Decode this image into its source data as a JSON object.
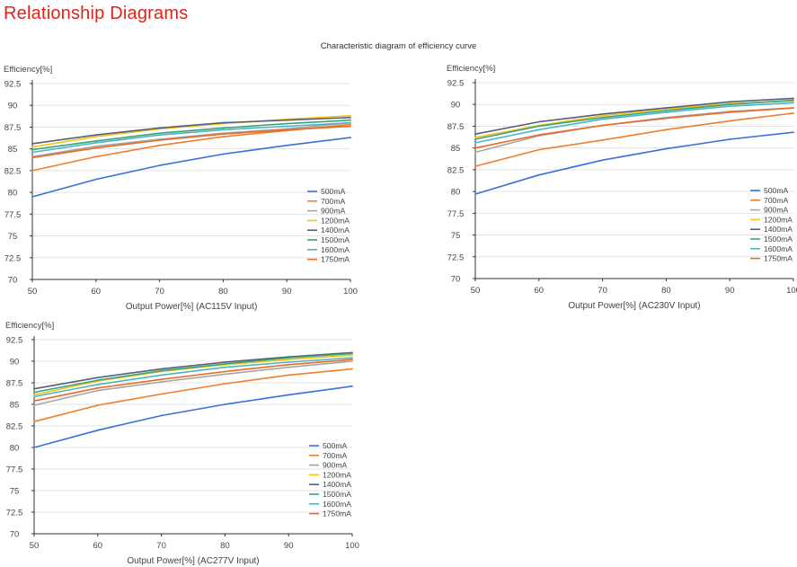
{
  "page": {
    "title": "Relationship Diagrams",
    "caption": "Characteristic diagram of efficiency curve"
  },
  "colors": {
    "title": "#e2231a",
    "gridline": "#e3e3e3",
    "axis": "#333333"
  },
  "legend_entries": [
    {
      "name": "500mA",
      "color": "#3b6fd8"
    },
    {
      "name": "700mA",
      "color": "#ef7e2c"
    },
    {
      "name": "900mA",
      "color": "#a5a5a5"
    },
    {
      "name": "1200mA",
      "color": "#f2c218"
    },
    {
      "name": "1400mA",
      "color": "#55607a"
    },
    {
      "name": "1500mA",
      "color": "#3aa37b"
    },
    {
      "name": "1600mA",
      "color": "#4bb5c4"
    },
    {
      "name": "1750mA",
      "color": "#e86a26"
    }
  ],
  "chart_data": [
    {
      "type": "line",
      "ylabel": "Efficiency[%]",
      "xlabel": "Output Power[%] (AC115V Input)",
      "x": [
        50,
        60,
        70,
        80,
        90,
        100
      ],
      "xticks": [
        "50",
        "60",
        "70",
        "80",
        "90",
        "100"
      ],
      "ylim": [
        70,
        92.5
      ],
      "yticks": [
        "70",
        "72.5",
        "75",
        "77.5",
        "80",
        "82.5",
        "85",
        "87.5",
        "90",
        "92.5"
      ],
      "grid": "horizontal",
      "legend_position": "bottom-right",
      "series": [
        {
          "name": "500mA",
          "values": [
            79.5,
            81.5,
            83.1,
            84.4,
            85.4,
            86.3
          ]
        },
        {
          "name": "700mA",
          "values": [
            82.5,
            84.1,
            85.4,
            86.4,
            87.1,
            87.8
          ]
        },
        {
          "name": "900mA",
          "values": [
            84.1,
            85.3,
            86.1,
            86.8,
            87.3,
            88.0
          ]
        },
        {
          "name": "1200mA",
          "values": [
            85.2,
            86.4,
            87.3,
            87.9,
            88.4,
            88.8
          ]
        },
        {
          "name": "1400mA",
          "values": [
            85.6,
            86.6,
            87.4,
            88.0,
            88.3,
            88.6
          ]
        },
        {
          "name": "1500mA",
          "values": [
            84.9,
            85.9,
            86.8,
            87.4,
            87.9,
            88.3
          ]
        },
        {
          "name": "1600mA",
          "values": [
            84.6,
            85.7,
            86.6,
            87.2,
            87.6,
            88.0
          ]
        },
        {
          "name": "1750mA",
          "values": [
            84.0,
            85.1,
            86.0,
            86.7,
            87.2,
            87.6
          ]
        }
      ]
    },
    {
      "type": "line",
      "ylabel": "Efficiency[%]",
      "xlabel": "Output Power[%] (AC230V Input)",
      "x": [
        50,
        60,
        70,
        80,
        90,
        100
      ],
      "xticks": [
        "50",
        "60",
        "70",
        "80",
        "90",
        "100"
      ],
      "ylim": [
        70,
        92.5
      ],
      "yticks": [
        "70",
        "72.5",
        "75",
        "77.5",
        "80",
        "82.5",
        "85",
        "87.5",
        "90",
        "92.5"
      ],
      "grid": "horizontal",
      "legend_position": "bottom-right",
      "series": [
        {
          "name": "500mA",
          "values": [
            79.7,
            81.9,
            83.6,
            84.9,
            86.0,
            86.8
          ]
        },
        {
          "name": "700mA",
          "values": [
            82.9,
            84.8,
            85.9,
            87.1,
            88.1,
            89.0
          ]
        },
        {
          "name": "900mA",
          "values": [
            84.5,
            86.4,
            87.6,
            88.5,
            89.2,
            89.6
          ]
        },
        {
          "name": "1200mA",
          "values": [
            86.2,
            87.6,
            88.7,
            89.5,
            90.1,
            90.4
          ]
        },
        {
          "name": "1400mA",
          "values": [
            86.6,
            88.0,
            88.9,
            89.6,
            90.3,
            90.7
          ]
        },
        {
          "name": "1500mA",
          "values": [
            86.0,
            87.5,
            88.5,
            89.3,
            90.0,
            90.5
          ]
        },
        {
          "name": "1600mA",
          "values": [
            85.6,
            87.1,
            88.3,
            89.1,
            89.8,
            90.2
          ]
        },
        {
          "name": "1750mA",
          "values": [
            85.0,
            86.5,
            87.6,
            88.4,
            89.1,
            89.6
          ]
        }
      ]
    },
    {
      "type": "line",
      "ylabel": "Efficiency[%]",
      "xlabel": "Output Power[%] (AC277V Input)",
      "x": [
        50,
        60,
        70,
        80,
        90,
        100
      ],
      "xticks": [
        "50",
        "60",
        "70",
        "80",
        "90",
        "100"
      ],
      "ylim": [
        70,
        92.5
      ],
      "yticks": [
        "70",
        "72.5",
        "75",
        "77.5",
        "80",
        "82.5",
        "85",
        "87.5",
        "90",
        "92.5"
      ],
      "grid": "horizontal",
      "legend_position": "bottom-right",
      "series": [
        {
          "name": "500mA",
          "values": [
            80.0,
            82.0,
            83.7,
            85.0,
            86.1,
            87.1
          ]
        },
        {
          "name": "700mA",
          "values": [
            83.0,
            84.9,
            86.2,
            87.4,
            88.4,
            89.1
          ]
        },
        {
          "name": "900mA",
          "values": [
            84.9,
            86.6,
            87.6,
            88.5,
            89.3,
            90.0
          ]
        },
        {
          "name": "1200mA",
          "values": [
            86.1,
            87.7,
            88.8,
            89.6,
            90.2,
            90.7
          ]
        },
        {
          "name": "1400mA",
          "values": [
            86.8,
            88.1,
            89.1,
            89.9,
            90.5,
            91.0
          ]
        },
        {
          "name": "1500mA",
          "values": [
            86.4,
            87.8,
            88.9,
            89.7,
            90.4,
            90.9
          ]
        },
        {
          "name": "1600mA",
          "values": [
            85.9,
            87.3,
            88.4,
            89.3,
            89.9,
            90.4
          ]
        },
        {
          "name": "1750mA",
          "values": [
            85.4,
            86.9,
            87.9,
            88.8,
            89.6,
            90.2
          ]
        }
      ]
    }
  ]
}
